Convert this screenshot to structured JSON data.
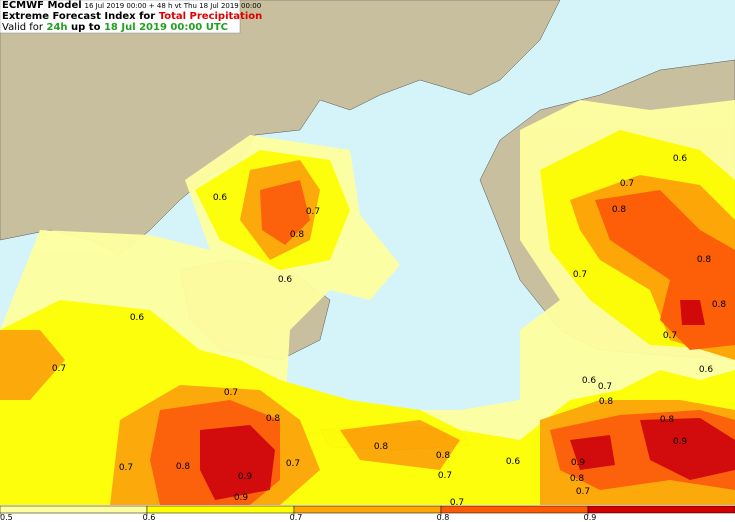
{
  "header": {
    "model": "ECMWF Model",
    "run": "16 Jul 2019 00:00 + 48 h vt Thu 18 Jul 2019 00:00",
    "index_prefix": "Extreme Forecast Index for",
    "parameter": "Total Precipitation",
    "valid_prefix": "Valid for",
    "period": "24h",
    "valid_middle": "up to",
    "valid_time": "18 Jul 2019 00:00 UTC"
  },
  "contour_labels": [
    "0.6",
    "0.6",
    "0.6",
    "0.6",
    "0.6",
    "0.6",
    "0.6",
    "0.7",
    "0.7",
    "0.7",
    "0.7",
    "0.7",
    "0.7",
    "0.7",
    "0.7",
    "0.7",
    "0.7",
    "0.7",
    "0.7",
    "0.8",
    "0.8",
    "0.8",
    "0.8",
    "0.8",
    "0.8",
    "0.8",
    "0.8",
    "0.8",
    "0.8",
    "0.8",
    "0.9",
    "0.9",
    "0.9",
    "0.9"
  ],
  "colorbar": {
    "ticks": [
      0.5,
      0.6,
      0.7,
      0.8,
      0.9
    ],
    "range": [
      0.5,
      1.0
    ],
    "colors": [
      "#ffffa0",
      "#ffff00",
      "#ffa500",
      "#ff5a00",
      "#d20000"
    ]
  }
}
